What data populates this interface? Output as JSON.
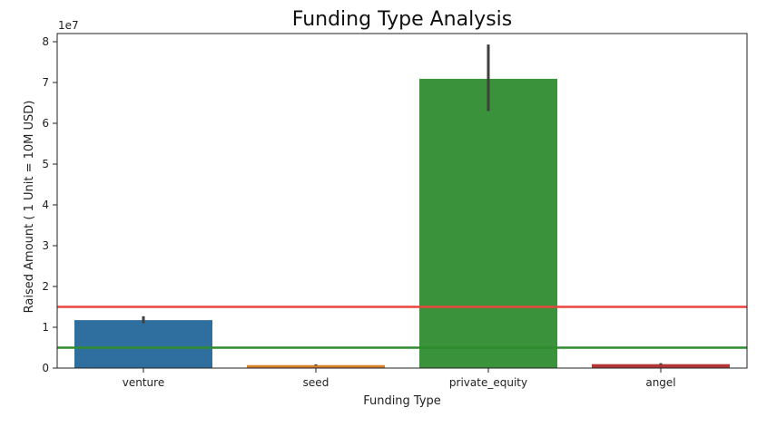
{
  "chart_data": {
    "type": "bar",
    "title": "Funding Type Analysis",
    "xlabel": "Funding Type",
    "ylabel": "Raised Amount   ( 1 Unit = 10M USD)",
    "y_offset_label": "1e7",
    "categories": [
      "venture",
      "seed",
      "private_equity",
      "angel"
    ],
    "values": [
      11750000,
      720000,
      70900000,
      960000
    ],
    "error_bars": [
      [
        11000000,
        12700000
      ],
      [
        600000,
        900000
      ],
      [
        63000000,
        79300000
      ],
      [
        750000,
        1200000
      ]
    ],
    "colors": [
      "#2f6f9f",
      "#d8802a",
      "#3a933a",
      "#b33535"
    ],
    "ylim": [
      0,
      82000000
    ],
    "yticks": [
      0,
      10000000,
      20000000,
      30000000,
      40000000,
      50000000,
      60000000,
      70000000,
      80000000
    ],
    "ytick_labels": [
      "0",
      "1",
      "2",
      "3",
      "4",
      "5",
      "6",
      "7",
      "8"
    ],
    "reference_lines": [
      {
        "value": 15000000,
        "color": "#e8453c"
      },
      {
        "value": 5000000,
        "color": "#2e8b2e"
      }
    ],
    "grid": false
  }
}
